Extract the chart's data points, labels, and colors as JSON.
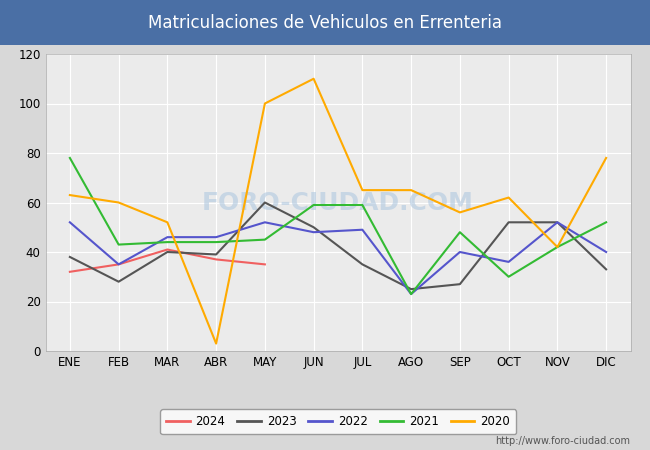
{
  "title": "Matriculaciones de Vehiculos en Errenteria",
  "title_bg_color": "#4a6fa5",
  "title_text_color": "#ffffff",
  "ylim": [
    0,
    120
  ],
  "yticks": [
    0,
    20,
    40,
    60,
    80,
    100,
    120
  ],
  "months": [
    "ENE",
    "FEB",
    "MAR",
    "ABR",
    "MAY",
    "JUN",
    "JUL",
    "AGO",
    "SEP",
    "OCT",
    "NOV",
    "DIC"
  ],
  "outer_bg_color": "#d8d8d8",
  "plot_bg_color": "#ebebeb",
  "watermark": "FORO-CIUDAD.COM",
  "url": "http://www.foro-ciudad.com",
  "series": {
    "2024": {
      "color": "#f06060",
      "data": [
        32,
        35,
        41,
        37,
        35,
        null,
        null,
        null,
        null,
        null,
        null,
        null
      ]
    },
    "2023": {
      "color": "#555555",
      "data": [
        38,
        28,
        40,
        39,
        60,
        50,
        35,
        25,
        27,
        52,
        52,
        33
      ]
    },
    "2022": {
      "color": "#5555cc",
      "data": [
        52,
        35,
        46,
        46,
        52,
        48,
        49,
        23,
        40,
        36,
        52,
        40
      ]
    },
    "2021": {
      "color": "#33bb33",
      "data": [
        78,
        43,
        44,
        44,
        45,
        59,
        59,
        23,
        48,
        30,
        42,
        52
      ]
    },
    "2020": {
      "color": "#ffaa00",
      "data": [
        63,
        60,
        52,
        3,
        100,
        110,
        65,
        65,
        56,
        62,
        42,
        78
      ]
    }
  },
  "legend_order": [
    "2024",
    "2023",
    "2022",
    "2021",
    "2020"
  ],
  "title_fontsize": 12,
  "tick_fontsize": 8.5,
  "legend_fontsize": 8.5,
  "url_fontsize": 7,
  "linewidth": 1.5,
  "grid_color": "#ffffff",
  "grid_linewidth": 0.8,
  "watermark_color": "#b0c8e0",
  "watermark_alpha": 0.6,
  "watermark_fontsize": 18
}
